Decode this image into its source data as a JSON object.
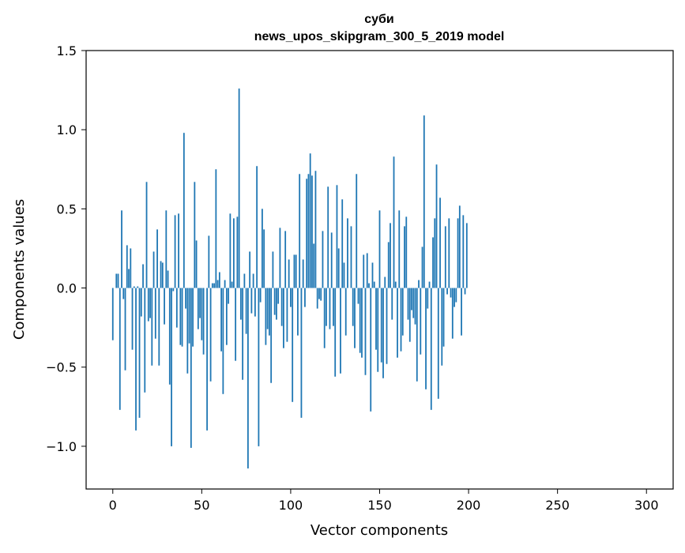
{
  "chart_data": {
    "type": "bar",
    "title": "суби",
    "subtitle": "news_upos_skipgram_300_5_2019 model",
    "xlabel": "Vector components",
    "ylabel": "Components values",
    "xlim": [
      -15,
      315
    ],
    "ylim": [
      -1.27,
      1.5
    ],
    "xticks": [
      0,
      50,
      100,
      150,
      200,
      250,
      300
    ],
    "yticks": [
      -1.0,
      -0.5,
      0.0,
      0.5,
      1.0,
      1.5
    ],
    "ytick_labels": [
      "−1.0",
      "−0.5",
      "0.0",
      "0.5",
      "1.0",
      "1.5"
    ],
    "xtick_labels": [
      "0",
      "50",
      "100",
      "150",
      "200",
      "250",
      "300"
    ],
    "grid": false,
    "color": "#1f77b4",
    "x_start": 0,
    "values": [
      -0.33,
      0.0,
      0.09,
      0.09,
      -0.77,
      0.49,
      -0.07,
      -0.52,
      0.27,
      0.12,
      0.25,
      -0.39,
      0.01,
      -0.9,
      0.01,
      -0.82,
      -0.18,
      0.15,
      -0.66,
      0.67,
      -0.21,
      -0.19,
      -0.49,
      0.23,
      -0.32,
      0.37,
      -0.49,
      0.17,
      0.16,
      -0.23,
      0.49,
      0.11,
      -0.61,
      -1.0,
      -0.02,
      0.46,
      -0.25,
      0.47,
      -0.36,
      -0.37,
      0.98,
      -0.13,
      -0.54,
      -0.35,
      -1.01,
      -0.37,
      0.67,
      0.3,
      -0.26,
      -0.19,
      -0.33,
      -0.42,
      0.0,
      -0.9,
      0.33,
      -0.59,
      0.03,
      0.03,
      0.75,
      0.05,
      0.1,
      -0.4,
      -0.67,
      0.05,
      -0.36,
      -0.1,
      0.47,
      0.04,
      0.44,
      -0.46,
      0.45,
      1.26,
      -0.2,
      -0.58,
      0.09,
      -0.29,
      -1.14,
      0.23,
      -0.16,
      0.09,
      -0.18,
      0.77,
      -1.0,
      -0.09,
      0.5,
      0.37,
      -0.36,
      -0.26,
      -0.3,
      -0.6,
      0.23,
      -0.17,
      -0.2,
      -0.1,
      0.38,
      -0.24,
      -0.38,
      0.36,
      -0.34,
      0.18,
      -0.12,
      -0.72,
      0.21,
      0.21,
      -0.3,
      0.72,
      -0.82,
      0.18,
      -0.12,
      0.69,
      0.72,
      0.85,
      0.71,
      0.28,
      0.74,
      -0.13,
      -0.07,
      -0.08,
      0.36,
      -0.38,
      -0.24,
      0.64,
      -0.26,
      0.35,
      -0.24,
      -0.56,
      0.65,
      0.25,
      -0.54,
      0.56,
      0.16,
      -0.3,
      0.44,
      0.0,
      0.39,
      -0.24,
      -0.38,
      0.72,
      -0.1,
      -0.41,
      -0.44,
      0.21,
      -0.55,
      0.22,
      0.03,
      -0.78,
      0.16,
      0.04,
      -0.39,
      -0.53,
      0.49,
      -0.47,
      -0.57,
      0.07,
      -0.48,
      0.29,
      0.41,
      -0.2,
      0.83,
      0.04,
      -0.44,
      0.49,
      -0.4,
      -0.3,
      0.39,
      0.45,
      -0.2,
      -0.34,
      -0.14,
      -0.19,
      -0.23,
      -0.59,
      0.05,
      -0.42,
      0.26,
      1.09,
      -0.64,
      -0.13,
      0.04,
      -0.77,
      0.32,
      0.44,
      0.78,
      -0.7,
      0.57,
      -0.49,
      -0.37,
      0.39,
      -0.04,
      0.44,
      -0.06,
      -0.32,
      -0.12,
      -0.09,
      0.44,
      0.52,
      -0.3,
      0.46,
      -0.04,
      0.41
    ]
  }
}
